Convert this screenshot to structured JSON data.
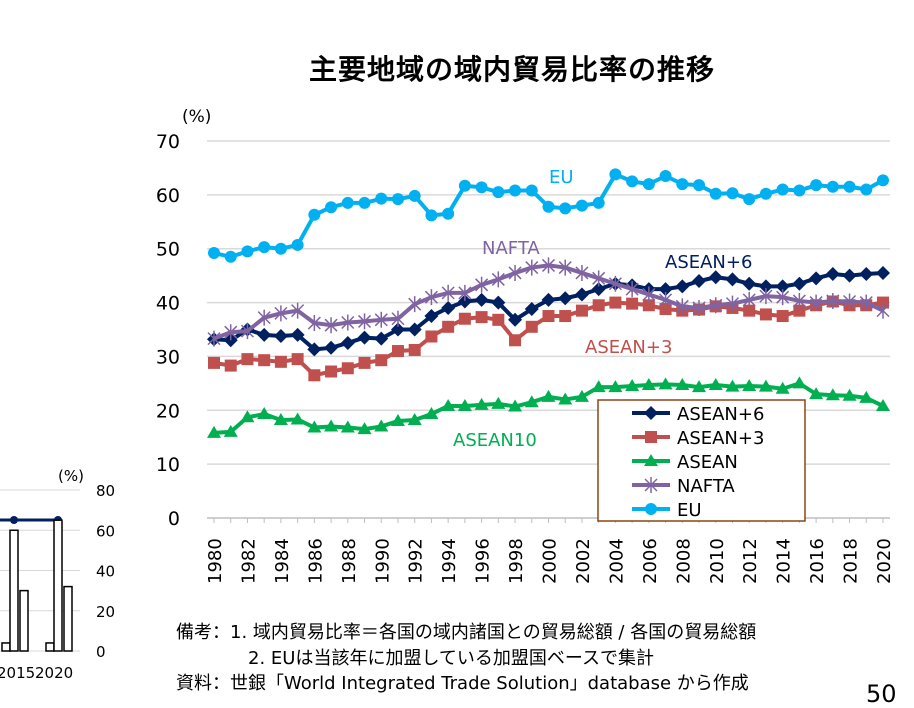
{
  "title": "主要地域の域内貿易比率の推移",
  "notes": [
    "備考：1. 域内貿易比率＝各国の域内諸国との貿易総額 / 各国の貿易総額",
    "　　　　2. EUは当該年に加盟している加盟国ベースで集計",
    "資料：世銀「World Integrated Trade Solution」database から作成"
  ],
  "page_number": "50",
  "chart_data": {
    "type": "line",
    "title": "主要地域の域内貿易比率の推移",
    "ylabel": "(%)",
    "xlabel": "",
    "ylim": [
      0,
      70
    ],
    "yticks": [
      0,
      10,
      20,
      30,
      40,
      50,
      60,
      70
    ],
    "grid": true,
    "legend_placement": "bottom-right",
    "x": [
      1980,
      1981,
      1982,
      1983,
      1984,
      1985,
      1986,
      1987,
      1988,
      1989,
      1990,
      1991,
      1992,
      1993,
      1994,
      1995,
      1996,
      1997,
      1998,
      1999,
      2000,
      2001,
      2002,
      2003,
      2004,
      2005,
      2006,
      2007,
      2008,
      2009,
      2010,
      2011,
      2012,
      2013,
      2014,
      2015,
      2016,
      2017,
      2018,
      2019,
      2020
    ],
    "series": [
      {
        "name": "ASEAN+6",
        "label": "ASEAN+6",
        "color": "#002060",
        "marker": "diamond",
        "values": [
          33.2,
          33,
          35,
          34,
          33.8,
          34,
          31.3,
          31.6,
          32.5,
          33.5,
          33.3,
          35,
          35,
          37.5,
          39,
          40.2,
          40.5,
          40,
          36.8,
          38.8,
          40.5,
          40.8,
          41.5,
          42.5,
          43.5,
          43.2,
          42.5,
          42.5,
          43,
          44,
          44.7,
          44.3,
          43.5,
          43,
          43,
          43.5,
          44.5,
          45.3,
          45,
          45.3,
          45.5
        ]
      },
      {
        "name": "ASEAN+3",
        "label": "ASEAN+3",
        "color": "#C0504D",
        "marker": "square",
        "values": [
          28.8,
          28.3,
          29.5,
          29.3,
          29,
          29.5,
          26.5,
          27.2,
          27.8,
          28.8,
          29.3,
          31,
          31.2,
          33.7,
          35.5,
          37,
          37.3,
          36.8,
          33,
          35.5,
          37.5,
          37.5,
          38.5,
          39.5,
          40,
          39.8,
          39.5,
          38.8,
          38.5,
          38.7,
          39.3,
          39,
          38.5,
          37.8,
          37.5,
          38.5,
          39.5,
          40.2,
          39.5,
          39.5,
          40
        ]
      },
      {
        "name": "ASEAN",
        "label": "ASEAN10",
        "color": "#00B050",
        "marker": "triangle",
        "values": [
          15.8,
          16,
          18.7,
          19.3,
          18.2,
          18.3,
          16.8,
          17,
          16.8,
          16.5,
          17,
          18,
          18.2,
          19.3,
          20.8,
          20.8,
          21,
          21.2,
          20.7,
          21.5,
          22.5,
          22,
          22.5,
          24.3,
          24.3,
          24.5,
          24.7,
          24.8,
          24.7,
          24.3,
          24.7,
          24.4,
          24.5,
          24.4,
          24,
          25,
          23,
          22.8,
          22.7,
          22.3,
          20.8
        ]
      },
      {
        "name": "NAFTA",
        "label": "NAFTA",
        "color": "#8064A2",
        "marker": "star",
        "values": [
          33.3,
          34.5,
          34.7,
          37.2,
          38,
          38.5,
          36.2,
          35.8,
          36.3,
          36.5,
          36.8,
          37,
          39.7,
          41,
          41.8,
          41.8,
          43.3,
          44.3,
          45.5,
          46.5,
          46.9,
          46.5,
          45.5,
          44.5,
          43.5,
          42.5,
          41.5,
          40.5,
          39.3,
          39,
          39.5,
          39.8,
          40.5,
          41.2,
          41,
          40.3,
          40,
          40.3,
          40.2,
          40,
          38.5
        ]
      },
      {
        "name": "EU",
        "label": "EU",
        "color": "#00B0F0",
        "marker": "circle",
        "values": [
          49.2,
          48.5,
          49.5,
          50.3,
          50,
          50.7,
          56.3,
          57.7,
          58.5,
          58.5,
          59.3,
          59.2,
          59.8,
          56.2,
          56.5,
          61.7,
          61.4,
          60.5,
          60.8,
          60.8,
          57.8,
          57.5,
          58,
          58.5,
          63.8,
          62.5,
          62,
          63.5,
          62,
          61.8,
          60.2,
          60.3,
          59.2,
          60.2,
          61,
          60.8,
          61.8,
          61.5,
          61.5,
          61,
          62.7
        ]
      }
    ]
  },
  "left_chart_partial": {
    "ylabel": "(%)",
    "yticks": [
      0,
      20,
      40,
      60,
      80
    ],
    "xticks": [
      "2015",
      "2020"
    ]
  }
}
